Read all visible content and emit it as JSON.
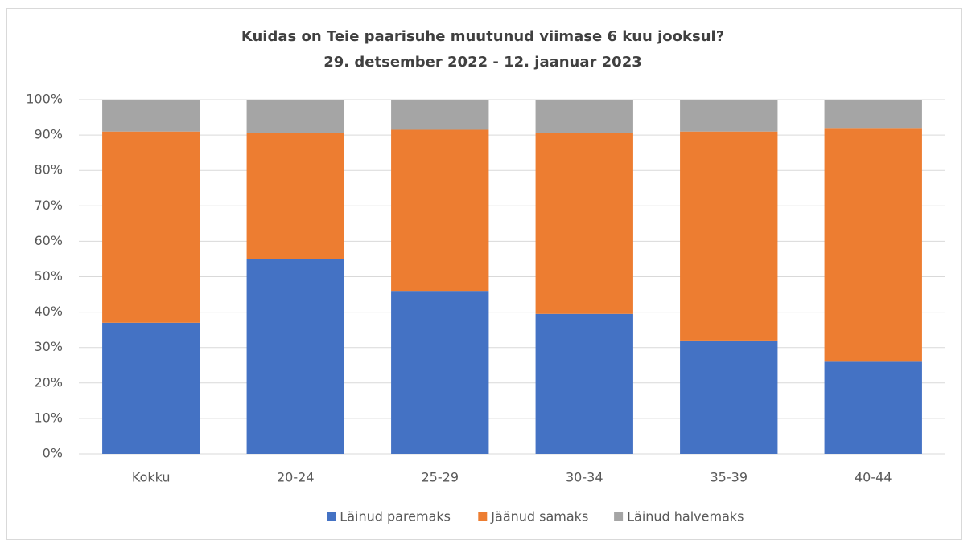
{
  "chart_data": {
    "type": "stacked_bar",
    "title": "Kuidas on Teie paarisuhe muutunud viimase 6 kuu jooksul?",
    "subtitle": "29. detsember 2022 - 12. jaanuar 2023",
    "categories": [
      "Kokku",
      "20-24",
      "25-29",
      "30-34",
      "35-39",
      "40-44"
    ],
    "series": [
      {
        "name": "Läinud paremaks",
        "color": "#4472c4",
        "values": [
          37,
          55,
          46,
          39.5,
          32,
          26
        ]
      },
      {
        "name": "Jäänud samaks",
        "color": "#ed7d31",
        "values": [
          54,
          35.5,
          45.5,
          51,
          59,
          66
        ]
      },
      {
        "name": "Läinud halvemaks",
        "color": "#a5a5a5",
        "values": [
          9,
          9.5,
          8.5,
          9.5,
          9,
          8
        ]
      }
    ],
    "ylim": [
      0,
      100
    ],
    "yticks": [
      {
        "value": 0,
        "label": "0%"
      },
      {
        "value": 10,
        "label": "10%"
      },
      {
        "value": 20,
        "label": "20%"
      },
      {
        "value": 30,
        "label": "30%"
      },
      {
        "value": 40,
        "label": "40%"
      },
      {
        "value": 50,
        "label": "50%"
      },
      {
        "value": 60,
        "label": "60%"
      },
      {
        "value": 70,
        "label": "70%"
      },
      {
        "value": 80,
        "label": "80%"
      },
      {
        "value": 90,
        "label": "90%"
      },
      {
        "value": 100,
        "label": "100%"
      }
    ],
    "grid": true,
    "legend": "bottom"
  }
}
